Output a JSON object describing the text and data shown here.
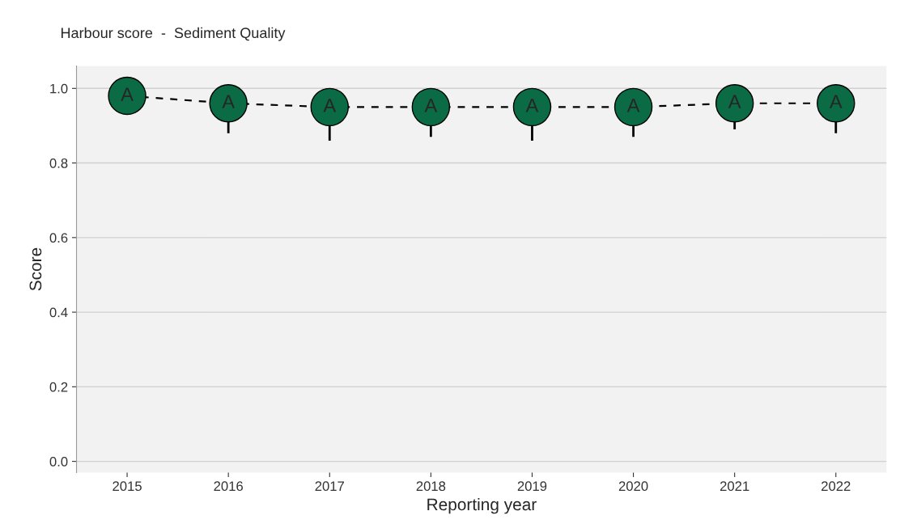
{
  "chart_data": {
    "type": "scatter",
    "title": "Harbour score  -  Sediment Quality",
    "xlabel": "Reporting year",
    "ylabel": "Score",
    "categories": [
      "2015",
      "2016",
      "2017",
      "2018",
      "2019",
      "2020",
      "2021",
      "2022"
    ],
    "series": [
      {
        "color": "#0b6b45",
        "values": [
          0.98,
          0.96,
          0.95,
          0.95,
          0.95,
          0.95,
          0.96,
          0.96
        ],
        "errors": [
          null,
          [
            0.88,
            0.96
          ],
          [
            0.86,
            0.95
          ],
          [
            0.87,
            0.95
          ],
          [
            0.86,
            0.95
          ],
          [
            0.87,
            0.95
          ],
          [
            0.89,
            0.96
          ],
          [
            0.88,
            0.96
          ]
        ],
        "value_labels": [
          "A",
          "A",
          "A",
          "A",
          "A",
          "A",
          "A",
          "A"
        ]
      },
      {
        "type": "line",
        "color": "#000000",
        "values": [
          0.98,
          0.96,
          0.95,
          0.95,
          0.95,
          0.95,
          0.96,
          0.96
        ]
      }
    ],
    "ylim": [
      -0.03,
      1.06
    ],
    "yticks": [
      {
        "value": 0,
        "label": "0.0"
      },
      0.2,
      0.4,
      0.6,
      0.8,
      {
        "value": 1,
        "label": "1.0"
      }
    ],
    "grid": "y",
    "line_style": "dashed",
    "legend": false
  }
}
